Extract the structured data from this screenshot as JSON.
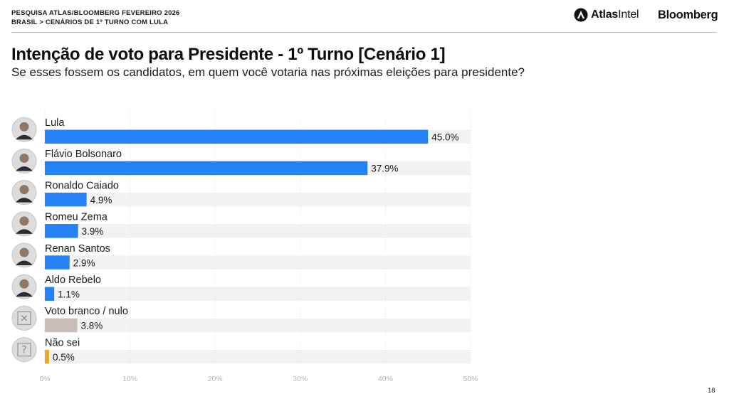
{
  "header": {
    "survey_line": "PESQUISA ATLAS/BLOOMBERG FEVEREIRO 2026",
    "breadcrumb_line": "BRASIL > CENÁRIOS DE 1º TURNO COM LULA",
    "logo_atlas_bold": "Atlas",
    "logo_atlas_regular": "Intel",
    "logo_bloomberg": "Bloomberg"
  },
  "title": "Intenção de voto para Presidente - 1º Turno [Cenário 1]",
  "subtitle": "Se esses fossem os candidatos, em quem você votaria nas próximas eleições para presidente?",
  "page_number": "18",
  "colors": {
    "bar_candidate": "#2581f6",
    "bar_blank": "#c8bcb6",
    "bar_unknown": "#e8a92a",
    "track": "#f2f2f2",
    "grid": "#e3e3e3",
    "tick_text": "#b5b5b5",
    "avatar_bg": "#dcdcdc"
  },
  "chart_data": {
    "type": "bar",
    "orientation": "horizontal",
    "title": "Intenção de voto para Presidente - 1º Turno [Cenário 1]",
    "xlim": [
      0,
      50
    ],
    "xticks": [
      0,
      10,
      20,
      30,
      40,
      50
    ],
    "xtick_labels": [
      "0%",
      "10%",
      "20%",
      "30%",
      "40%",
      "50%"
    ],
    "categories": [
      "Lula",
      "Flávio Bolsonaro",
      "Ronaldo Caiado",
      "Romeu Zema",
      "Renan Santos",
      "Aldo Rebelo",
      "Voto branco / nulo",
      "Não sei"
    ],
    "values": [
      45.0,
      37.9,
      4.9,
      3.9,
      2.9,
      1.1,
      3.8,
      0.5
    ],
    "value_labels": [
      "45.0%",
      "37.9%",
      "4.9%",
      "3.9%",
      "2.9%",
      "1.1%",
      "3.8%",
      "0.5%"
    ],
    "bar_kind": [
      "candidate",
      "candidate",
      "candidate",
      "candidate",
      "candidate",
      "candidate",
      "blank",
      "unknown"
    ],
    "icons": [
      "lula-avatar",
      "flavio-bolsonaro-avatar",
      "ronaldo-caiado-avatar",
      "romeu-zema-avatar",
      "renan-santos-avatar",
      "aldo-rebelo-avatar",
      "blank-vote-icon",
      "question-icon"
    ],
    "icon_glyphs": [
      "",
      "",
      "",
      "",
      "",
      "",
      "✕",
      "?"
    ],
    "grid": true,
    "legend": "none"
  }
}
